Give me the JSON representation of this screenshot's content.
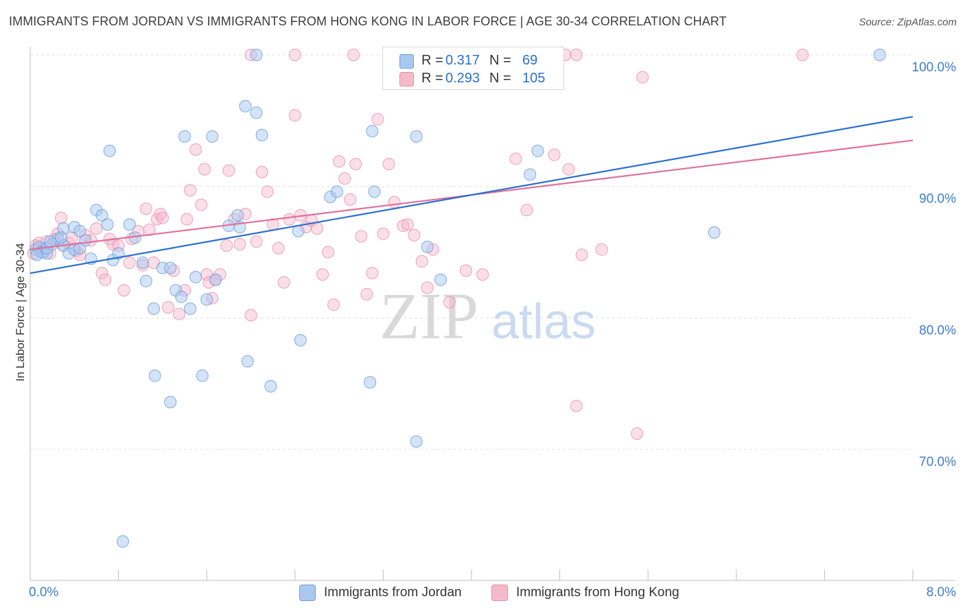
{
  "title": "IMMIGRANTS FROM JORDAN VS IMMIGRANTS FROM HONG KONG IN LABOR FORCE | AGE 30-34 CORRELATION CHART",
  "source": "Source: ZipAtlas.com",
  "watermark": {
    "zip": "ZIP",
    "atlas": "atlas"
  },
  "colors": {
    "jordan_fill": "#a9c8f0",
    "jordan_stroke": "#6a9fdc",
    "jordan_line": "#2a6fcf",
    "hongkong_fill": "#f6b9cc",
    "hongkong_stroke": "#e98aa8",
    "hongkong_line": "#e0709a",
    "axis_text": "#3d7bd0",
    "grid": "#e0e0e0"
  },
  "legend_top": [
    {
      "r_label": "R =",
      "r_value": "0.317",
      "n_label": "N =",
      "n_value": "69"
    },
    {
      "r_label": "R =",
      "r_value": "0.293",
      "n_label": "N =",
      "n_value": "105"
    }
  ],
  "legend_bottom": [
    {
      "label": "Immigrants from Jordan"
    },
    {
      "label": "Immigrants from Hong Kong"
    }
  ],
  "chart_data": {
    "type": "scatter",
    "title": "IMMIGRANTS FROM JORDAN VS IMMIGRANTS FROM HONG KONG IN LABOR FORCE | AGE 30-34 CORRELATION CHART",
    "xlabel": "",
    "ylabel": "In Labor Force | Age 30-34",
    "xlim": [
      0,
      8
    ],
    "ylim": [
      60,
      101
    ],
    "x_tick_labels": [
      "0.0%",
      "8.0%"
    ],
    "y_ticks": [
      70,
      80,
      90,
      100
    ],
    "y_tick_labels": [
      "70.0%",
      "80.0%",
      "90.0%",
      "100.0%"
    ],
    "grid": true,
    "legend_position": "top-center",
    "series": [
      {
        "name": "Immigrants from Jordan",
        "R": 0.317,
        "N": 69,
        "trend": {
          "x": [
            0,
            8
          ],
          "y": [
            83.4,
            95.3
          ]
        },
        "points": [
          [
            0.05,
            85.2
          ],
          [
            0.08,
            85.4
          ],
          [
            0.1,
            85.0
          ],
          [
            0.12,
            85.0
          ],
          [
            0.15,
            84.9
          ],
          [
            0.2,
            85.6
          ],
          [
            0.25,
            86.0
          ],
          [
            0.3,
            85.5
          ],
          [
            0.35,
            84.9
          ],
          [
            0.4,
            85.2
          ],
          [
            0.45,
            85.3
          ],
          [
            0.5,
            85.9
          ],
          [
            0.55,
            84.5
          ],
          [
            0.6,
            88.2
          ],
          [
            0.65,
            87.8
          ],
          [
            0.3,
            86.8
          ],
          [
            0.4,
            86.9
          ],
          [
            0.45,
            86.6
          ],
          [
            0.7,
            87.1
          ],
          [
            0.75,
            84.4
          ],
          [
            0.8,
            84.9
          ],
          [
            0.9,
            87.1
          ],
          [
            0.95,
            86.1
          ],
          [
            1.02,
            84.2
          ],
          [
            1.05,
            82.8
          ],
          [
            1.12,
            80.7
          ],
          [
            1.2,
            83.8
          ],
          [
            1.27,
            83.8
          ],
          [
            1.32,
            82.1
          ],
          [
            1.37,
            81.6
          ],
          [
            1.45,
            80.7
          ],
          [
            1.5,
            83.1
          ],
          [
            1.6,
            81.4
          ],
          [
            1.68,
            82.9
          ],
          [
            1.8,
            87.0
          ],
          [
            1.88,
            87.8
          ],
          [
            1.95,
            96.1
          ],
          [
            2.05,
            95.6
          ],
          [
            2.1,
            93.9
          ],
          [
            1.65,
            93.8
          ],
          [
            1.4,
            93.8
          ],
          [
            0.72,
            92.7
          ],
          [
            1.9,
            86.9
          ],
          [
            2.43,
            86.6
          ],
          [
            2.45,
            78.3
          ],
          [
            2.72,
            89.2
          ],
          [
            2.78,
            89.6
          ],
          [
            3.1,
            94.2
          ],
          [
            3.12,
            89.6
          ],
          [
            3.5,
            93.8
          ],
          [
            3.6,
            85.4
          ],
          [
            3.72,
            82.9
          ],
          [
            1.13,
            75.6
          ],
          [
            1.27,
            73.6
          ],
          [
            1.56,
            75.6
          ],
          [
            1.97,
            76.7
          ],
          [
            2.18,
            74.8
          ],
          [
            3.08,
            75.1
          ],
          [
            3.5,
            70.6
          ],
          [
            0.84,
            63.0
          ],
          [
            2.05,
            100.0
          ],
          [
            4.6,
            92.7
          ],
          [
            4.53,
            90.9
          ],
          [
            6.2,
            86.5
          ],
          [
            7.7,
            100.0
          ],
          [
            0.06,
            84.8
          ],
          [
            0.15,
            85.3
          ],
          [
            0.18,
            85.8
          ],
          [
            0.28,
            86.1
          ]
        ]
      },
      {
        "name": "Immigrants from Hong Kong",
        "R": 0.293,
        "N": 105,
        "trend": {
          "x": [
            0,
            8
          ],
          "y": [
            85.2,
            93.5
          ]
        },
        "points": [
          [
            0.03,
            84.9
          ],
          [
            0.05,
            85.5
          ],
          [
            0.08,
            85.7
          ],
          [
            0.1,
            85.3
          ],
          [
            0.12,
            85.2
          ],
          [
            0.15,
            85.8
          ],
          [
            0.18,
            84.9
          ],
          [
            0.22,
            86.0
          ],
          [
            0.25,
            86.4
          ],
          [
            0.28,
            87.6
          ],
          [
            0.3,
            85.5
          ],
          [
            0.35,
            85.7
          ],
          [
            0.38,
            86.1
          ],
          [
            0.42,
            85.1
          ],
          [
            0.45,
            84.8
          ],
          [
            0.5,
            86.3
          ],
          [
            0.55,
            85.9
          ],
          [
            0.6,
            86.8
          ],
          [
            0.65,
            83.4
          ],
          [
            0.68,
            82.9
          ],
          [
            0.72,
            86.0
          ],
          [
            0.75,
            85.6
          ],
          [
            0.8,
            85.5
          ],
          [
            0.85,
            82.1
          ],
          [
            0.9,
            84.2
          ],
          [
            0.92,
            86.0
          ],
          [
            0.98,
            86.6
          ],
          [
            1.02,
            84.0
          ],
          [
            1.05,
            88.3
          ],
          [
            1.08,
            86.7
          ],
          [
            1.12,
            84.2
          ],
          [
            1.15,
            87.5
          ],
          [
            1.18,
            87.9
          ],
          [
            1.2,
            87.6
          ],
          [
            1.25,
            80.8
          ],
          [
            1.3,
            83.6
          ],
          [
            1.35,
            80.3
          ],
          [
            1.4,
            82.1
          ],
          [
            1.42,
            87.5
          ],
          [
            1.45,
            89.7
          ],
          [
            1.5,
            92.8
          ],
          [
            1.55,
            88.6
          ],
          [
            1.58,
            91.3
          ],
          [
            1.6,
            83.3
          ],
          [
            1.62,
            82.7
          ],
          [
            1.65,
            81.5
          ],
          [
            1.68,
            82.9
          ],
          [
            1.72,
            83.3
          ],
          [
            1.78,
            85.5
          ],
          [
            1.8,
            91.2
          ],
          [
            1.85,
            87.5
          ],
          [
            1.9,
            85.6
          ],
          [
            1.95,
            87.9
          ],
          [
            2.0,
            80.2
          ],
          [
            2.05,
            85.8
          ],
          [
            2.1,
            91.1
          ],
          [
            2.15,
            89.6
          ],
          [
            2.2,
            87.1
          ],
          [
            2.25,
            85.3
          ],
          [
            2.3,
            82.7
          ],
          [
            2.35,
            87.5
          ],
          [
            2.4,
            95.4
          ],
          [
            2.45,
            87.8
          ],
          [
            2.5,
            86.9
          ],
          [
            2.55,
            87.4
          ],
          [
            2.6,
            86.8
          ],
          [
            2.65,
            83.3
          ],
          [
            2.7,
            85.0
          ],
          [
            2.75,
            81.0
          ],
          [
            2.8,
            91.9
          ],
          [
            2.85,
            90.6
          ],
          [
            2.9,
            89.0
          ],
          [
            2.95,
            91.7
          ],
          [
            3.0,
            86.2
          ],
          [
            3.05,
            81.8
          ],
          [
            3.1,
            83.4
          ],
          [
            3.15,
            95.1
          ],
          [
            3.2,
            86.4
          ],
          [
            3.25,
            91.7
          ],
          [
            3.3,
            88.8
          ],
          [
            3.38,
            87.0
          ],
          [
            3.42,
            87.1
          ],
          [
            3.48,
            86.3
          ],
          [
            3.55,
            84.3
          ],
          [
            3.6,
            82.3
          ],
          [
            3.65,
            85.2
          ],
          [
            3.8,
            81.2
          ],
          [
            3.95,
            83.6
          ],
          [
            4.1,
            83.3
          ],
          [
            4.4,
            92.1
          ],
          [
            4.5,
            88.2
          ],
          [
            4.75,
            92.4
          ],
          [
            4.88,
            91.3
          ],
          [
            5.0,
            84.8
          ],
          [
            5.18,
            85.2
          ],
          [
            4.95,
            73.3
          ],
          [
            5.5,
            71.2
          ],
          [
            5.55,
            98.3
          ],
          [
            2.0,
            100.0
          ],
          [
            2.4,
            100.0
          ],
          [
            2.93,
            100.0
          ],
          [
            3.7,
            100.0
          ],
          [
            4.85,
            100.0
          ],
          [
            4.95,
            100.0
          ],
          [
            7.0,
            100.0
          ]
        ]
      }
    ]
  }
}
